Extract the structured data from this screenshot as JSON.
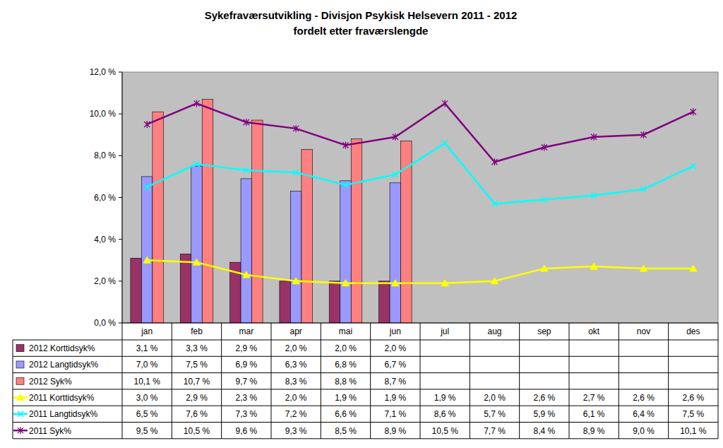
{
  "chart_data": {
    "type": "bar",
    "title": "Sykefraværsutvikling - Divisjon Psykisk Helsevern 2011 - 2012",
    "subtitle": "fordelt etter fraværslengde",
    "categories": [
      "jan",
      "feb",
      "mar",
      "apr",
      "mai",
      "jun",
      "jul",
      "aug",
      "sep",
      "okt",
      "nov",
      "des"
    ],
    "ylim": [
      0,
      12
    ],
    "yticks": [
      {
        "value": 0,
        "label": "0,0 %"
      },
      {
        "value": 2,
        "label": "2,0 %"
      },
      {
        "value": 4,
        "label": "4,0 %"
      },
      {
        "value": 6,
        "label": "6,0 %"
      },
      {
        "value": 8,
        "label": "8,0 %"
      },
      {
        "value": 10,
        "label": "10,0 %"
      },
      {
        "value": 12,
        "label": "12,0 %"
      }
    ],
    "grid": false,
    "data_labels": true,
    "series": [
      {
        "name": "2012 Korttidsyk%",
        "type": "bar",
        "color": "#993366",
        "values": [
          3.1,
          3.3,
          2.9,
          2.0,
          2.0,
          2.0,
          null,
          null,
          null,
          null,
          null,
          null
        ],
        "value_labels": [
          "3,1 %",
          "3,3 %",
          "2,9 %",
          "2,0 %",
          "2,0 %",
          "2,0 %",
          null,
          null,
          null,
          null,
          null,
          null
        ]
      },
      {
        "name": "2012 Langtidsyk%",
        "type": "bar",
        "color": "#9999FF",
        "values": [
          7.0,
          7.5,
          6.9,
          6.3,
          6.8,
          6.7,
          null,
          null,
          null,
          null,
          null,
          null
        ],
        "value_labels": [
          "7,0 %",
          "7,5 %",
          "6,9 %",
          "6,3 %",
          "6,8 %",
          "6,7 %",
          null,
          null,
          null,
          null,
          null,
          null
        ]
      },
      {
        "name": "2012 Syk%",
        "type": "bar",
        "color": "#FF8080",
        "values": [
          10.1,
          10.7,
          9.7,
          8.3,
          8.8,
          8.7,
          null,
          null,
          null,
          null,
          null,
          null
        ],
        "value_labels": [
          "10,1 %",
          "10,7 %",
          "9,7 %",
          "8,3 %",
          "8,8 %",
          "8,7 %",
          null,
          null,
          null,
          null,
          null,
          null
        ]
      },
      {
        "name": "2011 Korttidsyk%",
        "type": "line",
        "color": "#FFFF00",
        "marker": "triangle",
        "line_style": "solid",
        "values": [
          3.0,
          2.9,
          2.3,
          2.0,
          1.9,
          1.9,
          1.9,
          2.0,
          2.6,
          2.7,
          2.6,
          2.6
        ],
        "value_labels": [
          "3,0 %",
          "2,9 %",
          "2,3 %",
          "2,0 %",
          "1,9 %",
          "1,9 %",
          "1,9 %",
          "2,0 %",
          "2,6 %",
          "2,7 %",
          "2,6 %",
          "2,6 %"
        ]
      },
      {
        "name": "2011 Langtidsyk%",
        "type": "line",
        "color": "#00FFFF",
        "marker": "x",
        "line_style": "solid",
        "values": [
          6.5,
          7.6,
          7.3,
          7.2,
          6.6,
          7.1,
          8.6,
          5.7,
          5.9,
          6.1,
          6.4,
          7.5
        ],
        "value_labels": [
          "6,5 %",
          "7,6 %",
          "7,3 %",
          "7,2 %",
          "6,6 %",
          "7,1 %",
          "8,6 %",
          "5,7 %",
          "5,9 %",
          "6,1 %",
          "6,4 %",
          "7,5 %"
        ]
      },
      {
        "name": "2011 Syk%",
        "type": "line",
        "color": "#800080",
        "marker": "star",
        "line_style": "solid",
        "values": [
          9.5,
          10.5,
          9.6,
          9.3,
          8.5,
          8.9,
          10.5,
          7.7,
          8.4,
          8.9,
          9.0,
          10.1
        ],
        "value_labels": [
          "9,5 %",
          "10,5 %",
          "9,6 %",
          "9,3 %",
          "8,5 %",
          "8,9 %",
          "10,5 %",
          "7,7 %",
          "8,4 %",
          "8,9 %",
          "9,0 %",
          "10,1 %"
        ]
      }
    ]
  }
}
